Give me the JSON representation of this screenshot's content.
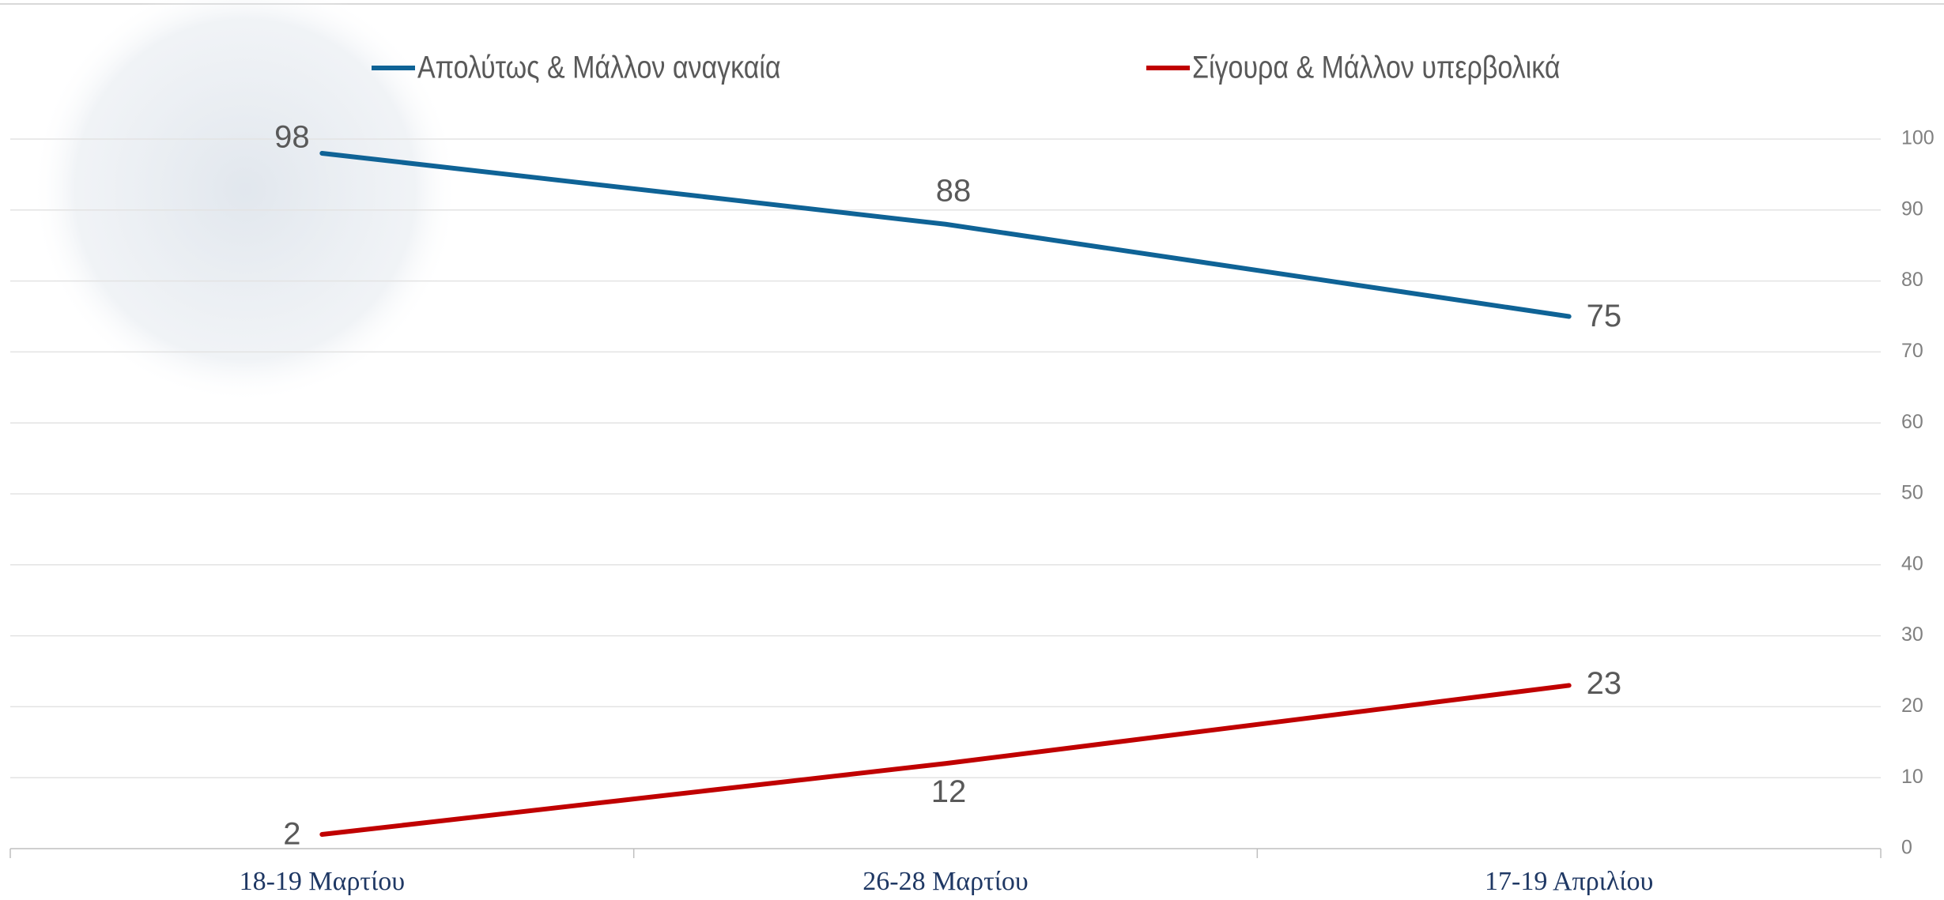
{
  "chart_data": {
    "type": "line",
    "categories": [
      "18-19 Μαρτίου",
      "26-28 Μαρτίου",
      "17-19 Απριλίου"
    ],
    "series": [
      {
        "name": "Απολύτως & Μάλλον αναγκαία",
        "color": "#0f6396",
        "values": [
          98,
          88,
          75
        ]
      },
      {
        "name": "Σίγουρα & Μάλλον υπερβολικά",
        "color": "#c00000",
        "values": [
          2,
          12,
          23
        ]
      }
    ],
    "ylim": [
      0,
      100
    ],
    "yticks": [
      0,
      10,
      20,
      30,
      40,
      50,
      60,
      70,
      80,
      90,
      100
    ],
    "grid": true,
    "legend": "top"
  }
}
